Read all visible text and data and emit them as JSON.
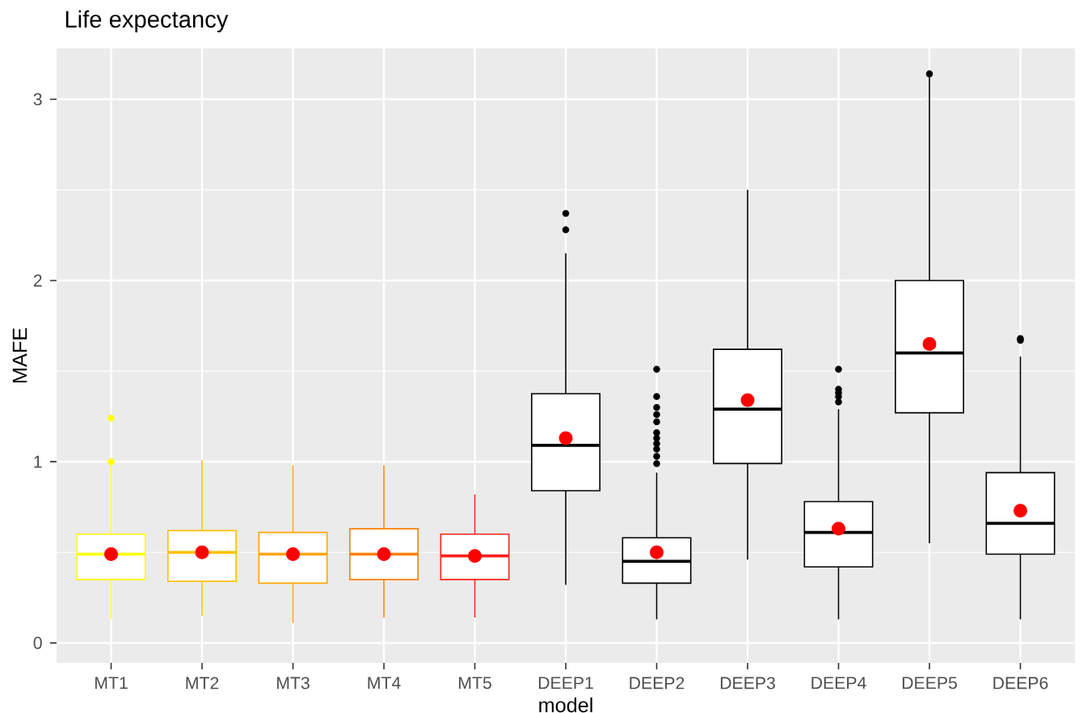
{
  "chart_data": {
    "type": "box",
    "title": "Life expectancy",
    "xlabel": "model",
    "ylabel": "MAFE",
    "categories": [
      "MT1",
      "MT2",
      "MT3",
      "MT4",
      "MT5",
      "DEEP1",
      "DEEP2",
      "DEEP3",
      "DEEP4",
      "DEEP5",
      "DEEP6"
    ],
    "colors": [
      "#ffff00",
      "#ffc000",
      "#ffa500",
      "#ff8000",
      "#ff2020",
      "#000000",
      "#000000",
      "#000000",
      "#000000",
      "#000000",
      "#000000"
    ],
    "boxes": [
      {
        "low": 0.13,
        "q1": 0.35,
        "median": 0.49,
        "q3": 0.6,
        "high": 1.0,
        "outliers": [
          1.0,
          1.24
        ]
      },
      {
        "low": 0.15,
        "q1": 0.34,
        "median": 0.5,
        "q3": 0.62,
        "high": 1.01
      },
      {
        "low": 0.11,
        "q1": 0.33,
        "median": 0.49,
        "q3": 0.61,
        "high": 0.98
      },
      {
        "low": 0.14,
        "q1": 0.35,
        "median": 0.49,
        "q3": 0.63,
        "high": 0.98
      },
      {
        "low": 0.14,
        "q1": 0.35,
        "median": 0.48,
        "q3": 0.6,
        "high": 0.82
      },
      {
        "low": 0.32,
        "q1": 0.84,
        "median": 1.09,
        "q3": 1.375,
        "high": 2.15,
        "outliers": [
          2.28,
          2.37
        ]
      },
      {
        "low": 0.13,
        "q1": 0.33,
        "median": 0.45,
        "q3": 0.58,
        "high": 0.94,
        "outliers": [
          0.99,
          1.03,
          1.07,
          1.1,
          1.13,
          1.16,
          1.22,
          1.26,
          1.3,
          1.36,
          1.51
        ]
      },
      {
        "low": 0.46,
        "q1": 0.99,
        "median": 1.29,
        "q3": 1.62,
        "high": 2.5
      },
      {
        "low": 0.13,
        "q1": 0.42,
        "median": 0.61,
        "q3": 0.78,
        "high": 1.29,
        "outliers": [
          1.33,
          1.36,
          1.38,
          1.4,
          1.51
        ]
      },
      {
        "low": 0.55,
        "q1": 1.27,
        "median": 1.6,
        "q3": 2.0,
        "high": 3.12,
        "outliers": [
          3.14
        ]
      },
      {
        "low": 0.13,
        "q1": 0.49,
        "median": 0.66,
        "q3": 0.94,
        "high": 1.58,
        "outliers": [
          1.67,
          1.68
        ]
      }
    ],
    "series": [
      {
        "type": "scatter",
        "x": [
          "MT1",
          "MT2",
          "MT3",
          "MT4",
          "MT5",
          "DEEP1",
          "DEEP2",
          "DEEP3",
          "DEEP4",
          "DEEP5",
          "DEEP6"
        ],
        "values": [
          0.49,
          0.5,
          0.49,
          0.49,
          0.48,
          1.13,
          0.5,
          1.34,
          0.63,
          1.65,
          0.73
        ],
        "color": "#ff0000",
        "marker": "circle"
      }
    ],
    "ylim": [
      -0.11,
      3.28
    ],
    "yticks": [
      0,
      1,
      2,
      3
    ],
    "grid": true
  }
}
